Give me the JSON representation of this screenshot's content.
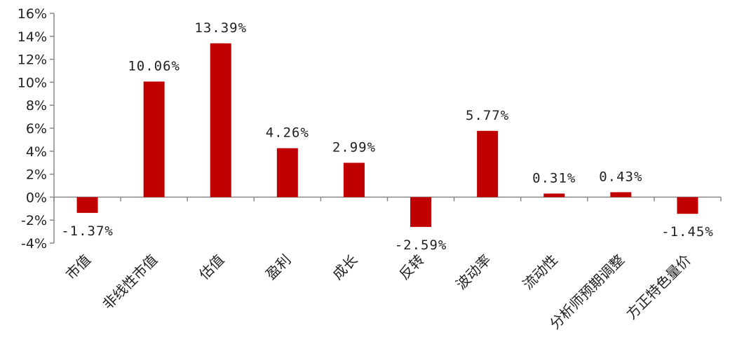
{
  "chart_data": {
    "type": "bar",
    "categories": [
      "市值",
      "非线性市值",
      "估值",
      "盈利",
      "成长",
      "反转",
      "波动率",
      "流动性",
      "分析师预期调整",
      "方正特色量价"
    ],
    "values": [
      -1.37,
      10.06,
      13.39,
      4.26,
      2.99,
      -2.59,
      5.77,
      0.31,
      0.43,
      -1.45
    ],
    "data_labels": [
      "-1.37%",
      "10.06%",
      "13.39%",
      "4.26%",
      "2.99%",
      "-2.59%",
      "5.77%",
      "0.31%",
      "0.43%",
      "-1.45%"
    ],
    "y_ticks": [
      "16%",
      "14%",
      "12%",
      "10%",
      "8%",
      "6%",
      "4%",
      "2%",
      "0%",
      "-2%",
      "-4%"
    ],
    "ylim": [
      -4,
      16
    ],
    "bar_color": "#c00000",
    "grid": false,
    "legend": "none"
  }
}
